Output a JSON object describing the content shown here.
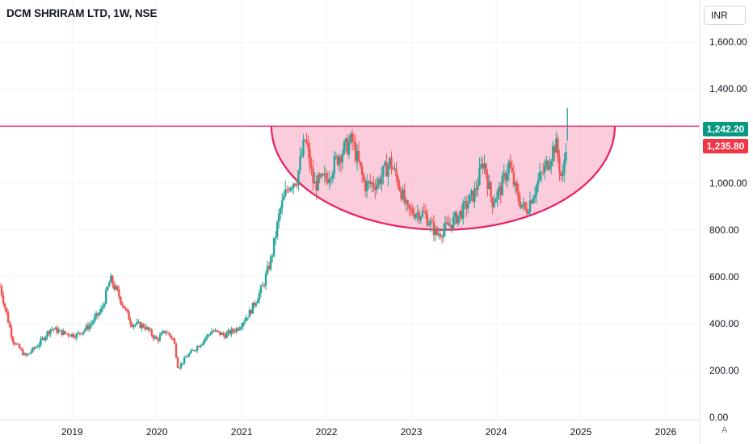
{
  "header": {
    "title": "DCM SHRIRAM LTD, 1W, NSE",
    "currency": "INR"
  },
  "price_badges": [
    {
      "label": "1,242.20",
      "color": "#089981"
    },
    {
      "label": "1,235.80",
      "color": "#f23645"
    }
  ],
  "scale_button": "A",
  "colors": {
    "up": "#26a69a",
    "down": "#ef5350",
    "resistance": "#f23645",
    "cup_fill": "#f8bbd0",
    "cup_stroke": "#e91e63"
  },
  "chart_data": {
    "type": "candlestick",
    "title": "DCM SHRIRAM LTD, 1W, NSE",
    "xlabel": "",
    "ylabel": "",
    "y_tick_labels": [
      "1,600.00",
      "1,400.00",
      "1,000.00",
      "800.00",
      "600.00",
      "400.00",
      "200.00",
      "0.00"
    ],
    "y_tick_values": [
      1600,
      1400,
      1000,
      800,
      600,
      400,
      200,
      0
    ],
    "x_tick_labels": [
      "2019",
      "2020",
      "2021",
      "2022",
      "2023",
      "2024",
      "2025",
      "2026"
    ],
    "x_tick_values": [
      2019,
      2020,
      2021,
      2022,
      2023,
      2024,
      2025,
      2026
    ],
    "x_range": [
      2018.15,
      2026.4
    ],
    "y_range": [
      -10,
      1780
    ],
    "price_lines": [
      {
        "label": "1,242.20",
        "value": 1242.2
      },
      {
        "label": "1,235.80",
        "value": 1235.8
      }
    ],
    "resistance_line": 1242.2,
    "cup_pattern": {
      "left_x": 2021.35,
      "bottom_x": 2023.35,
      "right_x": 2025.4,
      "top_y": 1242.2,
      "bottom_y": 800
    },
    "trend_points": [
      [
        2018.15,
        560
      ],
      [
        2018.3,
        330
      ],
      [
        2018.45,
        260
      ],
      [
        2018.6,
        310
      ],
      [
        2018.75,
        380
      ],
      [
        2018.9,
        360
      ],
      [
        2019.05,
        350
      ],
      [
        2019.2,
        390
      ],
      [
        2019.35,
        460
      ],
      [
        2019.45,
        590
      ],
      [
        2019.55,
        520
      ],
      [
        2019.7,
        400
      ],
      [
        2019.85,
        390
      ],
      [
        2020.0,
        330
      ],
      [
        2020.1,
        370
      ],
      [
        2020.2,
        330
      ],
      [
        2020.25,
        210
      ],
      [
        2020.35,
        260
      ],
      [
        2020.5,
        310
      ],
      [
        2020.65,
        370
      ],
      [
        2020.8,
        350
      ],
      [
        2020.95,
        380
      ],
      [
        2021.1,
        450
      ],
      [
        2021.25,
        560
      ],
      [
        2021.35,
        680
      ],
      [
        2021.45,
        880
      ],
      [
        2021.55,
        990
      ],
      [
        2021.65,
        1020
      ],
      [
        2021.75,
        1190
      ],
      [
        2021.85,
        990
      ],
      [
        2022.0,
        1020
      ],
      [
        2022.15,
        1120
      ],
      [
        2022.3,
        1180
      ],
      [
        2022.45,
        990
      ],
      [
        2022.6,
        1000
      ],
      [
        2022.75,
        1090
      ],
      [
        2022.85,
        1000
      ],
      [
        2022.95,
        880
      ],
      [
        2023.15,
        870
      ],
      [
        2023.3,
        780
      ],
      [
        2023.45,
        820
      ],
      [
        2023.6,
        880
      ],
      [
        2023.75,
        960
      ],
      [
        2023.85,
        1100
      ],
      [
        2023.95,
        920
      ],
      [
        2024.05,
        970
      ],
      [
        2024.15,
        1080
      ],
      [
        2024.25,
        940
      ],
      [
        2024.35,
        880
      ],
      [
        2024.5,
        1010
      ],
      [
        2024.6,
        1080
      ],
      [
        2024.7,
        1170
      ],
      [
        2024.78,
        1000
      ],
      [
        2024.84,
        1242
      ]
    ]
  }
}
